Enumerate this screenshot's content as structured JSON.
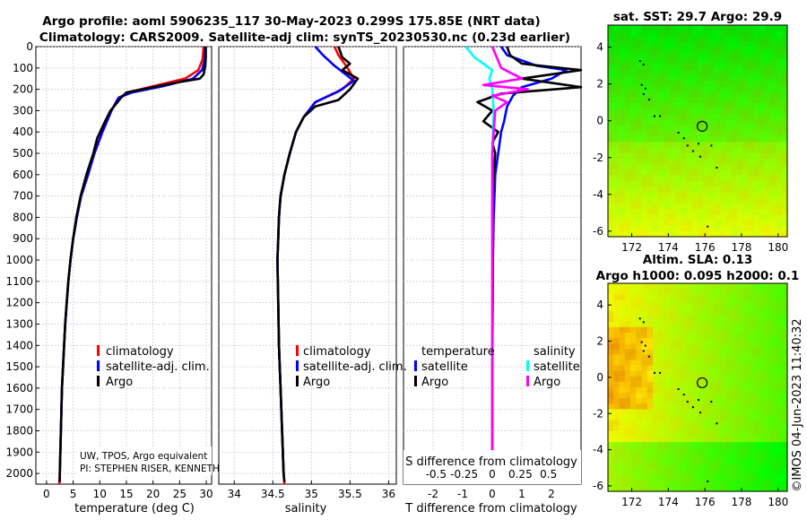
{
  "title_line1": "Argo profile: aoml 5906235_117 30-May-2023 0.299S 175.85E (NRT data)",
  "title_line2": "Climatology: CARS2009. Satellite-adj clim: synTS_20230530.nc (0.23d earlier)",
  "sst_title": "sat. SST: 29.7 Argo: 29.9",
  "sla_title1": "Altim. SLA: 0.13",
  "sla_title2": "Argo h1000: 0.095 h2000: 0.1",
  "watermark": "©IMOS 04-Jun-2023 11:40:32",
  "credit_line1": "UW, TPOS, Argo equivalent",
  "credit_line2": "PI: STEPHEN RISER, KENNETH",
  "colors": {
    "climatology": "#ff0000",
    "satellite": "#0000ff",
    "argo": "#000000",
    "sal_satellite": "#00ffff",
    "sal_argo": "#ff00ff"
  },
  "chart_data": [
    {
      "id": "temperature",
      "type": "line",
      "xlabel": "temperature (deg C)",
      "ylabel": "",
      "xlim": [
        -2,
        31
      ],
      "ylim": [
        2050,
        0
      ],
      "xticks": [
        0,
        5,
        10,
        15,
        20,
        25,
        30
      ],
      "yticks": [
        0,
        100,
        200,
        300,
        400,
        500,
        600,
        700,
        800,
        900,
        1000,
        1100,
        1200,
        1300,
        1400,
        1500,
        1600,
        1700,
        1800,
        1900,
        2000
      ],
      "legend": [
        "climatology",
        "satellite-adj. clim.",
        "Argo"
      ],
      "legend_loc": "lower-right",
      "series": [
        {
          "name": "climatology",
          "color": "#ff0000",
          "points": [
            [
              29.5,
              0
            ],
            [
              29.3,
              60
            ],
            [
              28.5,
              110
            ],
            [
              26,
              150
            ],
            [
              21,
              180
            ],
            [
              16,
              210
            ],
            [
              13.5,
              240
            ],
            [
              12.2,
              300
            ],
            [
              10.5,
              400
            ],
            [
              9,
              500
            ],
            [
              7.8,
              600
            ],
            [
              6.5,
              700
            ],
            [
              5.7,
              800
            ],
            [
              5,
              900
            ],
            [
              4.5,
              1000
            ],
            [
              4.1,
              1100
            ],
            [
              3.8,
              1200
            ],
            [
              3.5,
              1300
            ],
            [
              3.3,
              1400
            ],
            [
              3.1,
              1500
            ],
            [
              2.9,
              1600
            ],
            [
              2.8,
              1700
            ],
            [
              2.7,
              1800
            ],
            [
              2.6,
              1900
            ],
            [
              2.5,
              2000
            ],
            [
              2.4,
              2050
            ]
          ]
        },
        {
          "name": "satellite-adj. clim.",
          "color": "#0000ff",
          "points": [
            [
              29.8,
              0
            ],
            [
              29.7,
              60
            ],
            [
              29.2,
              110
            ],
            [
              27.5,
              150
            ],
            [
              22,
              185
            ],
            [
              16,
              215
            ],
            [
              13.5,
              240
            ],
            [
              12.2,
              300
            ],
            [
              10.5,
              400
            ],
            [
              9,
              500
            ],
            [
              7.8,
              600
            ],
            [
              6.5,
              700
            ],
            [
              5.7,
              800
            ],
            [
              5,
              900
            ],
            [
              4.5,
              1000
            ],
            [
              4.1,
              1100
            ],
            [
              3.8,
              1200
            ],
            [
              3.5,
              1300
            ],
            [
              3.3,
              1400
            ],
            [
              3.1,
              1500
            ],
            [
              2.9,
              1600
            ],
            [
              2.8,
              1700
            ],
            [
              2.7,
              1800
            ],
            [
              2.6,
              1900
            ],
            [
              2.5,
              2000
            ]
          ]
        },
        {
          "name": "Argo",
          "color": "#000000",
          "points": [
            [
              29.9,
              0
            ],
            [
              29.9,
              50
            ],
            [
              29.8,
              90
            ],
            [
              29.5,
              130
            ],
            [
              28.8,
              150
            ],
            [
              24,
              170
            ],
            [
              20,
              190
            ],
            [
              18,
              200
            ],
            [
              15,
              215
            ],
            [
              14,
              240
            ],
            [
              13,
              270
            ],
            [
              12,
              300
            ],
            [
              11,
              350
            ],
            [
              9.5,
              430
            ],
            [
              8.8,
              500
            ],
            [
              7.5,
              600
            ],
            [
              6.4,
              700
            ],
            [
              5.6,
              800
            ],
            [
              5,
              900
            ],
            [
              4.5,
              1000
            ],
            [
              4.1,
              1100
            ],
            [
              3.8,
              1200
            ],
            [
              3.5,
              1300
            ],
            [
              3.3,
              1400
            ],
            [
              3.1,
              1500
            ],
            [
              2.9,
              1600
            ],
            [
              2.8,
              1700
            ],
            [
              2.7,
              1800
            ],
            [
              2.6,
              1900
            ],
            [
              2.5,
              2000
            ],
            [
              2.5,
              2040
            ]
          ]
        }
      ]
    },
    {
      "id": "salinity",
      "type": "line",
      "xlabel": "salinity",
      "ylabel": "",
      "xlim": [
        33.8,
        36.1
      ],
      "ylim": [
        2050,
        0
      ],
      "xticks": [
        34,
        34.5,
        35,
        35.5,
        36
      ],
      "legend": [
        "climatology",
        "satellite-adj. clim.",
        "Argo"
      ],
      "legend_loc": "lower-right",
      "series": [
        {
          "name": "climatology",
          "color": "#ff0000",
          "points": [
            [
              35.3,
              0
            ],
            [
              35.35,
              40
            ],
            [
              35.45,
              90
            ],
            [
              35.55,
              150
            ],
            [
              35.4,
              200
            ],
            [
              35.05,
              260
            ],
            [
              34.9,
              330
            ],
            [
              34.8,
              400
            ],
            [
              34.72,
              500
            ],
            [
              34.65,
              600
            ],
            [
              34.6,
              700
            ],
            [
              34.58,
              800
            ],
            [
              34.57,
              900
            ],
            [
              34.56,
              1000
            ],
            [
              34.57,
              1200
            ],
            [
              34.58,
              1400
            ],
            [
              34.6,
              1600
            ],
            [
              34.62,
              1800
            ],
            [
              34.64,
              2000
            ],
            [
              34.65,
              2050
            ]
          ]
        },
        {
          "name": "satellite-adj. clim.",
          "color": "#0000ff",
          "points": [
            [
              35.05,
              0
            ],
            [
              35.15,
              40
            ],
            [
              35.3,
              90
            ],
            [
              35.55,
              160
            ],
            [
              35.35,
              210
            ],
            [
              35.05,
              260
            ],
            [
              34.9,
              330
            ],
            [
              34.8,
              400
            ],
            [
              34.72,
              500
            ],
            [
              34.65,
              600
            ],
            [
              34.6,
              700
            ],
            [
              34.58,
              800
            ],
            [
              34.57,
              900
            ],
            [
              34.56,
              1000
            ],
            [
              34.57,
              1200
            ],
            [
              34.58,
              1400
            ],
            [
              34.6,
              1600
            ],
            [
              34.62,
              1800
            ],
            [
              34.64,
              2000
            ]
          ]
        },
        {
          "name": "Argo",
          "color": "#000000",
          "points": [
            [
              35.35,
              0
            ],
            [
              35.4,
              50
            ],
            [
              35.5,
              80
            ],
            [
              35.4,
              110
            ],
            [
              35.6,
              150
            ],
            [
              35.5,
              200
            ],
            [
              35.35,
              250
            ],
            [
              35.05,
              280
            ],
            [
              34.9,
              330
            ],
            [
              34.8,
              400
            ],
            [
              34.72,
              500
            ],
            [
              34.65,
              600
            ],
            [
              34.6,
              700
            ],
            [
              34.58,
              800
            ],
            [
              34.57,
              900
            ],
            [
              34.56,
              1000
            ],
            [
              34.57,
              1200
            ],
            [
              34.58,
              1400
            ],
            [
              34.6,
              1600
            ],
            [
              34.62,
              1800
            ],
            [
              34.64,
              2000
            ],
            [
              34.65,
              2040
            ]
          ]
        }
      ]
    },
    {
      "id": "differences",
      "type": "line",
      "xlabel": "T difference from climatology",
      "xlabel2": "S difference from climatology",
      "xlim": [
        -3,
        3
      ],
      "ylim": [
        2050,
        0
      ],
      "xticks": [
        -2,
        -1,
        0,
        1,
        2
      ],
      "xticks2_labels": [
        "-0.5",
        "-0.25",
        "0",
        "0.25",
        "0.5"
      ],
      "xticks2_pos": [
        -1.9,
        -0.95,
        0,
        0.95,
        1.9
      ],
      "legend_temp_title": "temperature",
      "legend_sal_title": "salinity",
      "legend_temp": [
        "satellite",
        "Argo"
      ],
      "legend_sal": [
        "satellite",
        "Argo"
      ],
      "series": [
        {
          "name": "T satellite",
          "color": "#0000ff",
          "points": [
            [
              0.3,
              0
            ],
            [
              0.5,
              40
            ],
            [
              1.5,
              90
            ],
            [
              2.5,
              110
            ],
            [
              2,
              150
            ],
            [
              1,
              190
            ],
            [
              0.7,
              230
            ],
            [
              0.5,
              280
            ],
            [
              0.4,
              350
            ],
            [
              0.3,
              400
            ],
            [
              0.2,
              500
            ],
            [
              0.1,
              600
            ],
            [
              0.05,
              800
            ],
            [
              0.02,
              1000
            ],
            [
              0,
              1500
            ],
            [
              0,
              2000
            ]
          ]
        },
        {
          "name": "T Argo",
          "color": "#000000",
          "points": [
            [
              0.5,
              0
            ],
            [
              0.6,
              40
            ],
            [
              1,
              80
            ],
            [
              3,
              110
            ],
            [
              1,
              150
            ],
            [
              3,
              190
            ],
            [
              0.3,
              220
            ],
            [
              -0.5,
              260
            ],
            [
              0,
              300
            ],
            [
              -0.3,
              350
            ],
            [
              0.2,
              400
            ],
            [
              0,
              450
            ],
            [
              0.1,
              500
            ],
            [
              0.05,
              600
            ],
            [
              0,
              800
            ],
            [
              0.02,
              1000
            ],
            [
              0,
              1500
            ],
            [
              0,
              2000
            ],
            [
              0,
              2040
            ]
          ]
        },
        {
          "name": "S satellite",
          "color": "#00ffff",
          "points": [
            [
              -0.9,
              0
            ],
            [
              -0.6,
              50
            ],
            [
              0,
              110
            ],
            [
              -0.1,
              150
            ],
            [
              0,
              200
            ],
            [
              0.05,
              300
            ],
            [
              0,
              500
            ],
            [
              0,
              800
            ],
            [
              0,
              1200
            ],
            [
              0,
              1600
            ],
            [
              0,
              2000
            ],
            [
              0,
              2040
            ]
          ]
        },
        {
          "name": "S Argo",
          "color": "#ff00ff",
          "points": [
            [
              0,
              0
            ],
            [
              0.3,
              100
            ],
            [
              1,
              150
            ],
            [
              -0.3,
              180
            ],
            [
              1.2,
              200
            ],
            [
              0,
              230
            ],
            [
              0.5,
              260
            ],
            [
              0.1,
              300
            ],
            [
              0.05,
              400
            ],
            [
              0,
              500
            ],
            [
              0,
              800
            ],
            [
              0,
              1200
            ],
            [
              0,
              1600
            ],
            [
              0,
              2000
            ],
            [
              0,
              2040
            ]
          ]
        }
      ]
    },
    {
      "id": "sst_map",
      "type": "heatmap",
      "title": "sat. SST: 29.7 Argo: 29.9",
      "xlim": [
        170.7,
        180.5
      ],
      "ylim": [
        -6.3,
        5.2
      ],
      "xticks": [
        172,
        174,
        176,
        178,
        180
      ],
      "yticks": [
        4,
        2,
        0,
        -2,
        -4,
        -6
      ],
      "float_position": [
        175.85,
        -0.3
      ]
    },
    {
      "id": "sla_map",
      "type": "heatmap",
      "title": "Altim. SLA: 0.13",
      "xlim": [
        170.7,
        180.5
      ],
      "ylim": [
        -6.3,
        5.2
      ],
      "xticks": [
        172,
        174,
        176,
        178,
        180
      ],
      "yticks": [
        4,
        2,
        0,
        -2,
        -4,
        -6
      ],
      "float_position": [
        175.85,
        -0.3
      ]
    }
  ]
}
